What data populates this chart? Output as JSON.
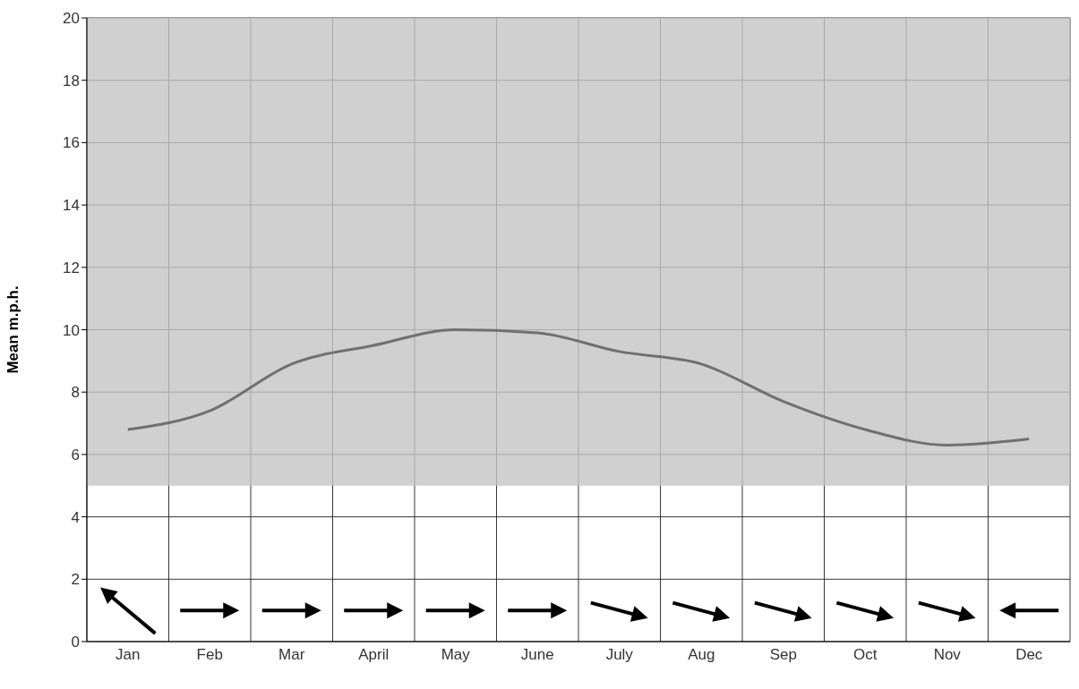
{
  "chart_data": {
    "type": "line",
    "ylabel": "Mean m.p.h.",
    "categories": [
      "Jan",
      "Feb",
      "Mar",
      "April",
      "May",
      "June",
      "July",
      "Aug",
      "Sep",
      "Oct",
      "Nov",
      "Dec"
    ],
    "series": [
      {
        "color": "#707070",
        "values": [
          6.8,
          7.4,
          8.9,
          9.5,
          10.0,
          9.9,
          9.3,
          8.9,
          7.7,
          6.8,
          6.3,
          6.5
        ]
      }
    ],
    "ylim": [
      0,
      20
    ],
    "yticks": [
      0,
      2,
      4,
      6,
      8,
      10,
      12,
      14,
      16,
      18,
      20
    ],
    "bands": [
      {
        "axis": "y",
        "from": 5,
        "to": 20,
        "color": "#c4c4c4"
      }
    ],
    "grid": true,
    "marker": "none",
    "line_style": "solid"
  }
}
